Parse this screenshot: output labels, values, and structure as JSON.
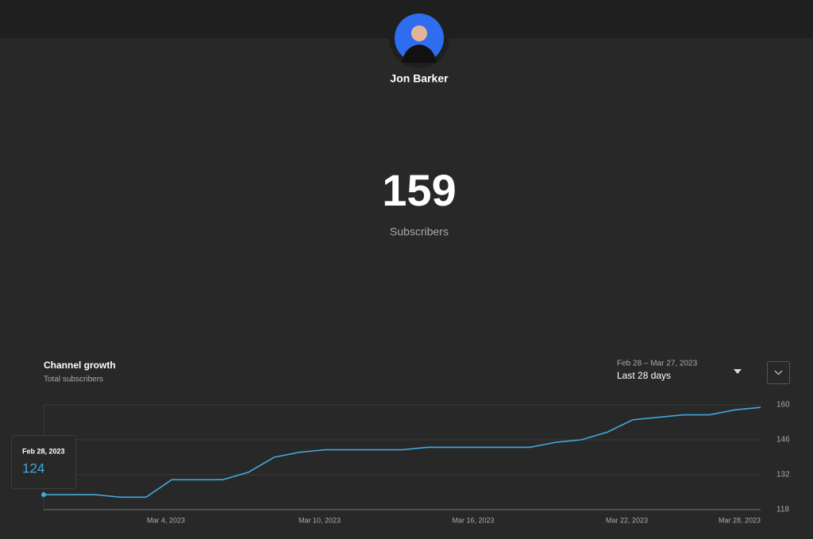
{
  "profile": {
    "name": "Jon Barker"
  },
  "stats": {
    "count": "159",
    "label": "Subscribers"
  },
  "chart_data": {
    "type": "line",
    "title": "Channel growth",
    "subtitle": "Total subscribers",
    "range": {
      "dates": "Feb 28 – Mar 27, 2023",
      "period": "Last 28 days"
    },
    "tooltip": {
      "date": "Feb 28, 2023"
    },
    "categories": [
      null,
      null,
      null,
      null,
      "Mar 4, 2023",
      null,
      null,
      null,
      null,
      null,
      "Mar 10, 2023",
      null,
      null,
      null,
      null,
      null,
      "Mar 16, 2023",
      null,
      null,
      null,
      null,
      null,
      "Mar 22, 2023",
      null,
      null,
      null,
      null,
      null,
      "Mar 28, 2023"
    ],
    "series": [
      {
        "name": "Subscribers",
        "color": "#41a9db",
        "values": [
          124,
          124,
          124,
          123,
          123,
          130,
          130,
          130,
          133,
          139,
          141,
          142,
          142,
          142,
          142,
          143,
          143,
          143,
          143,
          143,
          145,
          146,
          149,
          154,
          155,
          156,
          156,
          158,
          159
        ]
      }
    ],
    "ylim": [
      118,
      160
    ],
    "yticks": [
      118,
      132,
      146,
      160
    ],
    "grid": true
  }
}
